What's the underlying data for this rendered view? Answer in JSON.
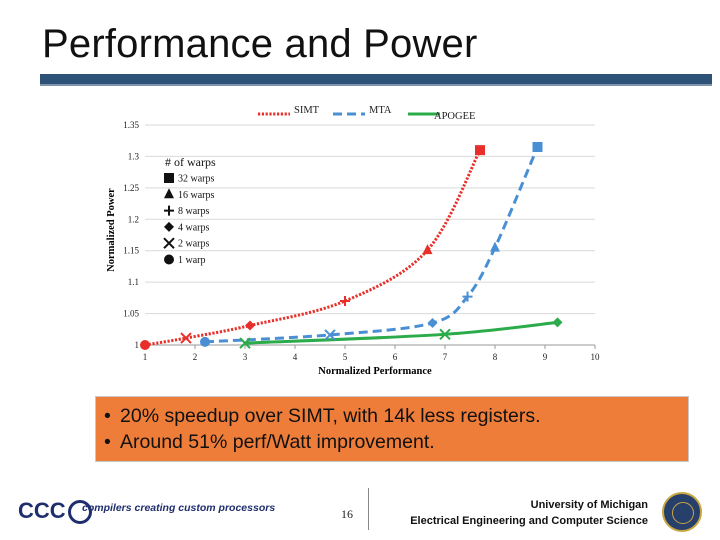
{
  "slide": {
    "title": "Performance and Power",
    "bullets": [
      "20% speedup over SIMT, with 14k less registers.",
      "Around 51% perf/Watt improvement."
    ],
    "bullet_box_color": "#ef7d3a",
    "page_number": "16",
    "footer_left_logo": "CCC",
    "footer_left_tagline": "compilers creating custom processors",
    "footer_right_line1": "University of Michigan",
    "footer_right_line2": "Electrical Engineering and Computer Science"
  },
  "chart_data": {
    "type": "line",
    "xlabel": "Normalized Performance",
    "ylabel": "Normalized Power",
    "xlim": [
      1,
      10
    ],
    "ylim": [
      1,
      1.35
    ],
    "x_ticks": [
      "1",
      "2",
      "3",
      "4",
      "5",
      "6",
      "7",
      "8",
      "9",
      "10"
    ],
    "y_ticks": [
      "1",
      "1.05",
      "1.1",
      "1.15",
      "1.2",
      "1.25",
      "1.3",
      "1.35"
    ],
    "grid": "horizontal",
    "legend_placement": "top",
    "marker_legend_title": "# of warps",
    "marker_legend": [
      {
        "marker": "square",
        "label": "32 warps"
      },
      {
        "marker": "triangle",
        "label": "16 warps"
      },
      {
        "marker": "plus",
        "label": "8 warps"
      },
      {
        "marker": "diamond",
        "label": "4 warps"
      },
      {
        "marker": "x",
        "label": "2 warps"
      },
      {
        "marker": "circle",
        "label": "1 warp"
      }
    ],
    "series": [
      {
        "name": "SIMT",
        "color": "#e8302a",
        "dash": "dotted",
        "points": [
          {
            "x": 1.0,
            "y": 1.0,
            "marker": "circle"
          },
          {
            "x": 1.82,
            "y": 1.011,
            "marker": "x"
          },
          {
            "x": 3.1,
            "y": 1.031,
            "marker": "diamond"
          },
          {
            "x": 5.0,
            "y": 1.07,
            "marker": "plus"
          },
          {
            "x": 6.65,
            "y": 1.151,
            "marker": "triangle"
          },
          {
            "x": 7.7,
            "y": 1.31,
            "marker": "square"
          }
        ]
      },
      {
        "name": "MTA",
        "color": "#4a8fd4",
        "dash": "dashed",
        "points": [
          {
            "x": 2.2,
            "y": 1.005,
            "marker": "circle"
          },
          {
            "x": 4.7,
            "y": 1.016,
            "marker": "x"
          },
          {
            "x": 6.75,
            "y": 1.035,
            "marker": "diamond"
          },
          {
            "x": 7.45,
            "y": 1.077,
            "marker": "plus"
          },
          {
            "x": 8.0,
            "y": 1.155,
            "marker": "triangle"
          },
          {
            "x": 8.85,
            "y": 1.315,
            "marker": "square"
          }
        ]
      },
      {
        "name": "APOGEE",
        "color": "#2bab49",
        "dash": "solid",
        "points": [
          {
            "x": 3.0,
            "y": 1.003,
            "marker": "x"
          },
          {
            "x": 7.0,
            "y": 1.017,
            "marker": "x"
          },
          {
            "x": 9.25,
            "y": 1.036,
            "marker": "diamond"
          }
        ]
      }
    ]
  }
}
